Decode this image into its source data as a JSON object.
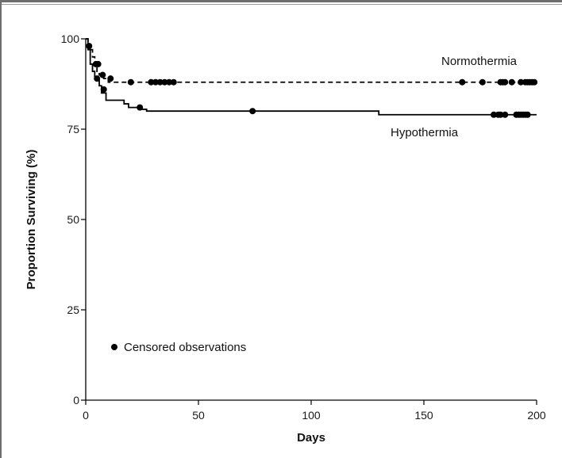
{
  "chart_data": {
    "type": "line",
    "title": "",
    "xlabel": "Days",
    "ylabel": "Proportion Surviving (%)",
    "xlim": [
      0,
      200
    ],
    "ylim": [
      0,
      100
    ],
    "x_ticks": [
      0,
      50,
      100,
      150,
      200
    ],
    "y_ticks": [
      0,
      25,
      50,
      75,
      100
    ],
    "grid": false,
    "legend": {
      "label": "Censored observations",
      "position": "lower-left"
    },
    "series": [
      {
        "name": "Normothermia",
        "style": "dashed",
        "color": "#000000",
        "steps": [
          [
            0,
            100
          ],
          [
            1,
            98
          ],
          [
            2,
            97
          ],
          [
            3,
            95
          ],
          [
            4,
            93
          ],
          [
            5,
            91
          ],
          [
            6,
            90
          ],
          [
            8,
            89
          ],
          [
            10,
            88
          ],
          [
            200,
            88
          ]
        ],
        "censored": [
          [
            1.5,
            98
          ],
          [
            4.5,
            93
          ],
          [
            5.5,
            93
          ],
          [
            7.5,
            90
          ],
          [
            11,
            89
          ],
          [
            20,
            88
          ],
          [
            29,
            88
          ],
          [
            31,
            88
          ],
          [
            33,
            88
          ],
          [
            35,
            88
          ],
          [
            37,
            88
          ],
          [
            39,
            88
          ],
          [
            167,
            88
          ],
          [
            176,
            88
          ],
          [
            184,
            88
          ],
          [
            185,
            88
          ],
          [
            186,
            88
          ],
          [
            189,
            88
          ],
          [
            193,
            88
          ],
          [
            195,
            88
          ],
          [
            196,
            88
          ],
          [
            197,
            88
          ],
          [
            198,
            88
          ],
          [
            199,
            88
          ]
        ]
      },
      {
        "name": "Hypothermia",
        "style": "solid",
        "color": "#000000",
        "steps": [
          [
            0,
            100
          ],
          [
            1,
            97
          ],
          [
            2,
            93
          ],
          [
            3,
            91
          ],
          [
            4,
            89
          ],
          [
            6,
            87
          ],
          [
            7,
            85
          ],
          [
            9,
            83
          ],
          [
            17,
            82
          ],
          [
            19,
            81
          ],
          [
            25,
            80.5
          ],
          [
            27,
            80
          ],
          [
            130,
            79
          ],
          [
            200,
            79
          ]
        ],
        "censored": [
          [
            5,
            89
          ],
          [
            8,
            86
          ],
          [
            24,
            81
          ],
          [
            74,
            80
          ],
          [
            181,
            79
          ],
          [
            183,
            79
          ],
          [
            184,
            79
          ],
          [
            186,
            79
          ],
          [
            191,
            79
          ],
          [
            192,
            79
          ],
          [
            193,
            79
          ],
          [
            194,
            79
          ],
          [
            195,
            79
          ],
          [
            196,
            79
          ]
        ]
      }
    ]
  }
}
